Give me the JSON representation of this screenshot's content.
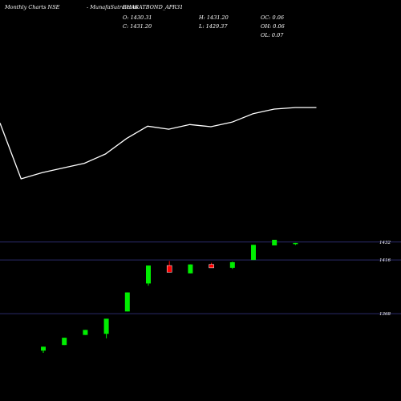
{
  "header": {
    "source": "Monthly Charts NSE",
    "symbol": "-  MunafaSutra.com",
    "ticker": "BHARATBOND_APR31",
    "ohlc": {
      "open": "O: 1430.31",
      "close": "C: 1431.20",
      "high": "H: 1431.20",
      "low": "L: 1429.37",
      "oc": "OC: 0.06",
      "oh": "OH: 0.06",
      "ol": "OL: 0.07"
    }
  },
  "colors": {
    "up": "#00ee00",
    "down": "#ff0000",
    "line": "#ffffff",
    "grid": "#2a2a6a",
    "background": "#000000"
  },
  "chart_data": [
    {
      "type": "line",
      "series": [
        {
          "values": [
            1418,
            1400,
            1402,
            1403.5,
            1405,
            1408,
            1413,
            1417,
            1416,
            1417.5,
            1416.8,
            1418.3,
            1421,
            1422.5,
            1423,
            1423
          ]
        }
      ],
      "ylim": [
        1393,
        1437
      ],
      "grid": false
    },
    {
      "type": "candlestick",
      "yticks": [
        "1432",
        "1416",
        "1368"
      ],
      "ytick_values": [
        1432,
        1416,
        1368
      ],
      "ylim": [
        1338,
        1434
      ],
      "candles": [
        {
          "open": 1335.0,
          "high": 1338.5,
          "low": 1333.0,
          "close": 1338.5,
          "dir": "up"
        },
        {
          "open": 1340.0,
          "high": 1346.5,
          "low": 1340.0,
          "close": 1346.5,
          "dir": "up"
        },
        {
          "open": 1349.0,
          "high": 1353.5,
          "low": 1349.0,
          "close": 1353.5,
          "dir": "up"
        },
        {
          "open": 1350.0,
          "high": 1363.5,
          "low": 1346.0,
          "close": 1363.5,
          "dir": "up"
        },
        {
          "open": 1370.0,
          "high": 1387.0,
          "low": 1370.0,
          "close": 1387.0,
          "dir": "up"
        },
        {
          "open": 1395.0,
          "high": 1411.0,
          "low": 1393.0,
          "close": 1411.0,
          "dir": "up"
        },
        {
          "open": 1411.0,
          "high": 1415.0,
          "low": 1405.0,
          "close": 1405.0,
          "dir": "down"
        },
        {
          "open": 1404.0,
          "high": 1412.0,
          "low": 1404.0,
          "close": 1412.0,
          "dir": "up"
        },
        {
          "open": 1412.0,
          "high": 1413.5,
          "low": 1409.0,
          "close": 1409.0,
          "dir": "down"
        },
        {
          "open": 1409.0,
          "high": 1414.5,
          "low": 1408.0,
          "close": 1414.0,
          "dir": "up"
        },
        {
          "open": 1416.0,
          "high": 1429.5,
          "low": 1416.0,
          "close": 1429.5,
          "dir": "up"
        },
        {
          "open": 1429.0,
          "high": 1434.0,
          "low": 1429.0,
          "close": 1434.0,
          "dir": "up"
        },
        {
          "open": 1430.31,
          "high": 1431.2,
          "low": 1429.37,
          "close": 1431.2,
          "dir": "up"
        }
      ]
    }
  ]
}
